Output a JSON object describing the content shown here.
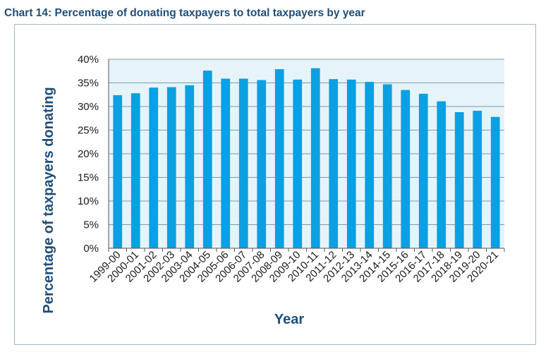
{
  "title": "Chart 14: Percentage of donating taxpayers to total taxpayers by year",
  "chart_data": {
    "type": "bar",
    "title": "Chart 14: Percentage of donating taxpayers to total taxpayers by year",
    "xlabel": "Year",
    "ylabel": "Percentage of taxpayers donating",
    "categories": [
      "1999-00",
      "2000-01",
      "2001-02",
      "2002-03",
      "2003-04",
      "2004-05",
      "2005-06",
      "2006-07",
      "2007-08",
      "2008-09",
      "2009-10",
      "2010-11",
      "2011-12",
      "2012-13",
      "2013-14",
      "2014-15",
      "2015-16",
      "2016-17",
      "2017-18",
      "2018-19",
      "2019-20",
      "2020-21"
    ],
    "values": [
      32.4,
      32.8,
      34.0,
      34.1,
      34.5,
      37.6,
      35.9,
      35.9,
      35.6,
      37.9,
      35.7,
      38.1,
      35.8,
      35.7,
      35.2,
      34.7,
      33.5,
      32.7,
      31.1,
      28.8,
      29.1,
      27.8
    ],
    "ylim": [
      0,
      40
    ],
    "yticks": [
      "0%",
      "5%",
      "10%",
      "15%",
      "20%",
      "25%",
      "30%",
      "35%",
      "40%"
    ],
    "grid": true,
    "colors": {
      "bar": "#0aa0e2",
      "plot_background": "#e6f4f9",
      "grid": "#5a7a90"
    }
  }
}
